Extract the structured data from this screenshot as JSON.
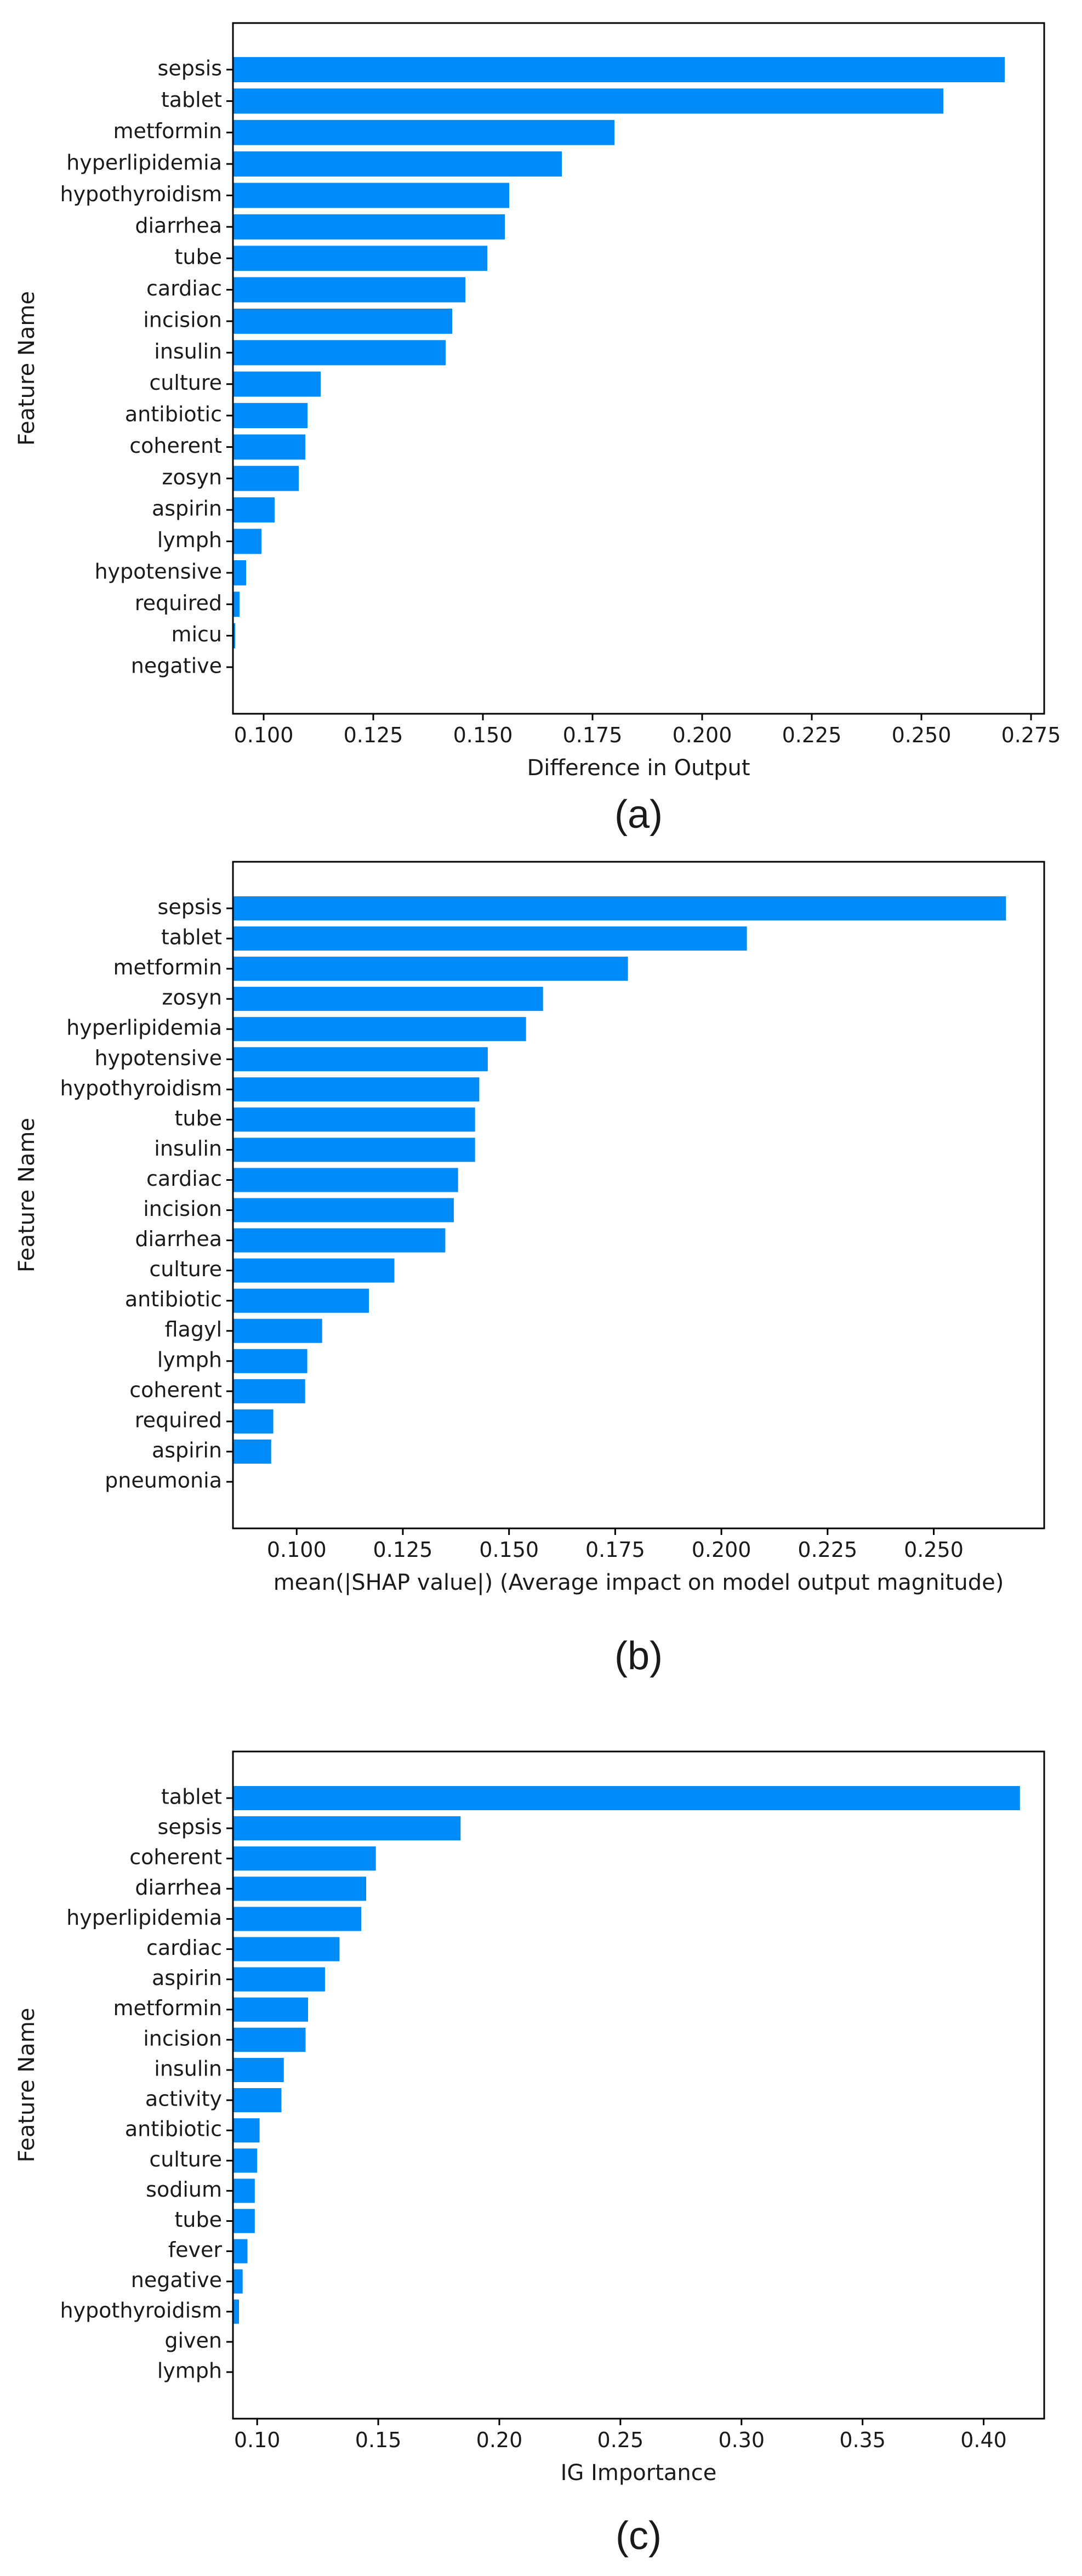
{
  "chart_data": [
    {
      "type": "bar",
      "orientation": "horizontal",
      "title": "",
      "caption": "(a)",
      "xlabel": "Difference in Output",
      "ylabel": "Feature Name",
      "xlim": [
        0.093,
        0.278
      ],
      "xticks": [
        0.1,
        0.125,
        0.15,
        0.175,
        0.2,
        0.225,
        0.25,
        0.275
      ],
      "xtick_labels": [
        "0.100",
        "0.125",
        "0.150",
        "0.175",
        "0.200",
        "0.225",
        "0.250",
        "0.275"
      ],
      "categories": [
        "sepsis",
        "tablet",
        "metformin",
        "hyperlipidemia",
        "hypothyroidism",
        "diarrhea",
        "tube",
        "cardiac",
        "incision",
        "insulin",
        "culture",
        "antibiotic",
        "coherent",
        "zosyn",
        "aspirin",
        "lymph",
        "hypotensive",
        "required",
        "micu",
        "negative"
      ],
      "values": [
        0.269,
        0.255,
        0.18,
        0.168,
        0.156,
        0.155,
        0.151,
        0.146,
        0.143,
        0.1415,
        0.113,
        0.11,
        0.1095,
        0.108,
        0.1025,
        0.0995,
        0.096,
        0.0945,
        0.0935,
        0.093
      ]
    },
    {
      "type": "bar",
      "orientation": "horizontal",
      "title": "",
      "caption": "(b)",
      "xlabel": "mean(|SHAP value|) (Average impact on model output magnitude)",
      "ylabel": "Feature Name",
      "xlim": [
        0.085,
        0.276
      ],
      "xticks": [
        0.1,
        0.125,
        0.15,
        0.175,
        0.2,
        0.225,
        0.25
      ],
      "xtick_labels": [
        "0.100",
        "0.125",
        "0.150",
        "0.175",
        "0.200",
        "0.225",
        "0.250"
      ],
      "categories": [
        "sepsis",
        "tablet",
        "metformin",
        "zosyn",
        "hyperlipidemia",
        "hypotensive",
        "hypothyroidism",
        "tube",
        "insulin",
        "cardiac",
        "incision",
        "diarrhea",
        "culture",
        "antibiotic",
        "flagyl",
        "lymph",
        "coherent",
        "required",
        "aspirin",
        "pneumonia"
      ],
      "values": [
        0.267,
        0.206,
        0.178,
        0.158,
        0.154,
        0.145,
        0.143,
        0.142,
        0.142,
        0.138,
        0.137,
        0.135,
        0.123,
        0.117,
        0.106,
        0.1025,
        0.102,
        0.0945,
        0.094,
        0.085
      ]
    },
    {
      "type": "bar",
      "orientation": "horizontal",
      "title": "",
      "caption": "(c)",
      "xlabel": "IG Importance",
      "ylabel": "Feature Name",
      "xlim": [
        0.09,
        0.425
      ],
      "xticks": [
        0.1,
        0.15,
        0.2,
        0.25,
        0.3,
        0.35,
        0.4
      ],
      "xtick_labels": [
        "0.10",
        "0.15",
        "0.20",
        "0.25",
        "0.30",
        "0.35",
        "0.40"
      ],
      "categories": [
        "tablet",
        "sepsis",
        "coherent",
        "diarrhea",
        "hyperlipidemia",
        "cardiac",
        "aspirin",
        "metformin",
        "incision",
        "insulin",
        "activity",
        "antibiotic",
        "culture",
        "sodium",
        "tube",
        "fever",
        "negative",
        "hypothyroidism",
        "given",
        "lymph"
      ],
      "values": [
        0.415,
        0.184,
        0.149,
        0.145,
        0.143,
        0.134,
        0.128,
        0.121,
        0.12,
        0.111,
        0.11,
        0.101,
        0.1,
        0.099,
        0.099,
        0.096,
        0.094,
        0.0925,
        0.09,
        0.09
      ]
    }
  ]
}
